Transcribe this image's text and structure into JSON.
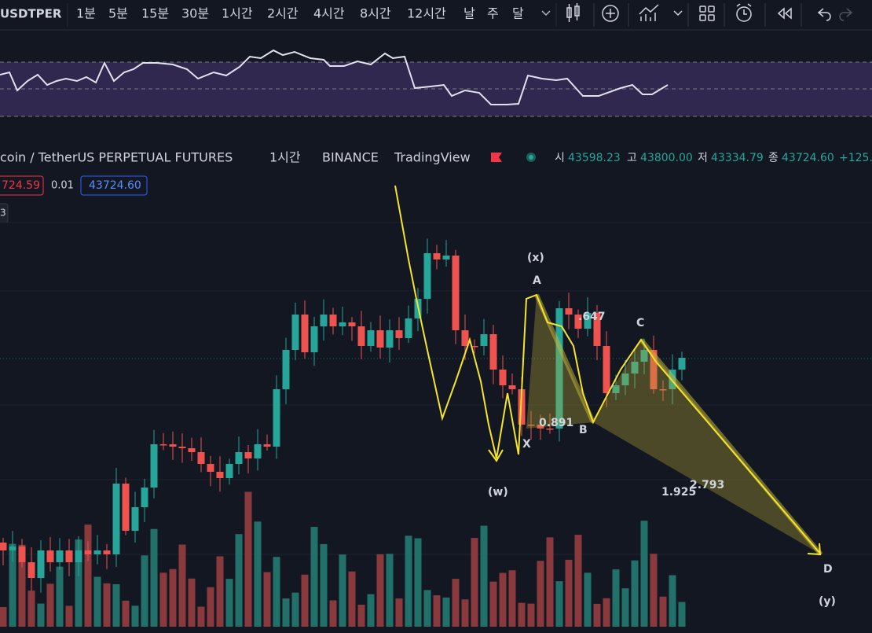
{
  "toolbar": {
    "symbol": "USDTPER",
    "intervals": [
      "1분",
      "5분",
      "15분",
      "30분",
      "1시간",
      "2시간",
      "4시간",
      "8시간",
      "12시간",
      "날",
      "주",
      "달"
    ],
    "active_interval": "1시간"
  },
  "legend": {
    "symbol_name": "coin / TetherUS PERPETUAL FUTURES",
    "interval": "1시간",
    "exchange": "BINANCE",
    "source": "TradingView",
    "ohlc": [
      {
        "key": "시",
        "value": "43598.23"
      },
      {
        "key": "고",
        "value": "43800.00"
      },
      {
        "key": "저",
        "value": "43334.79"
      },
      {
        "key": "종",
        "value": "43724.60"
      }
    ],
    "change": "+125."
  },
  "price_tags": {
    "bid": "724.59",
    "spread": "0.01",
    "ask": "43724.60",
    "count": "3"
  },
  "pattern_labels": {
    "x_wave": "(x)",
    "a": "A",
    "ratio_ab": ".647",
    "c": "C",
    "ratio_xb": "0.891",
    "b": "B",
    "x": "X",
    "w_wave": "(w)",
    "ratio_cd": "2.793",
    "ratio_bd": "1.925",
    "d": "D",
    "y_wave": "(y)"
  }
}
